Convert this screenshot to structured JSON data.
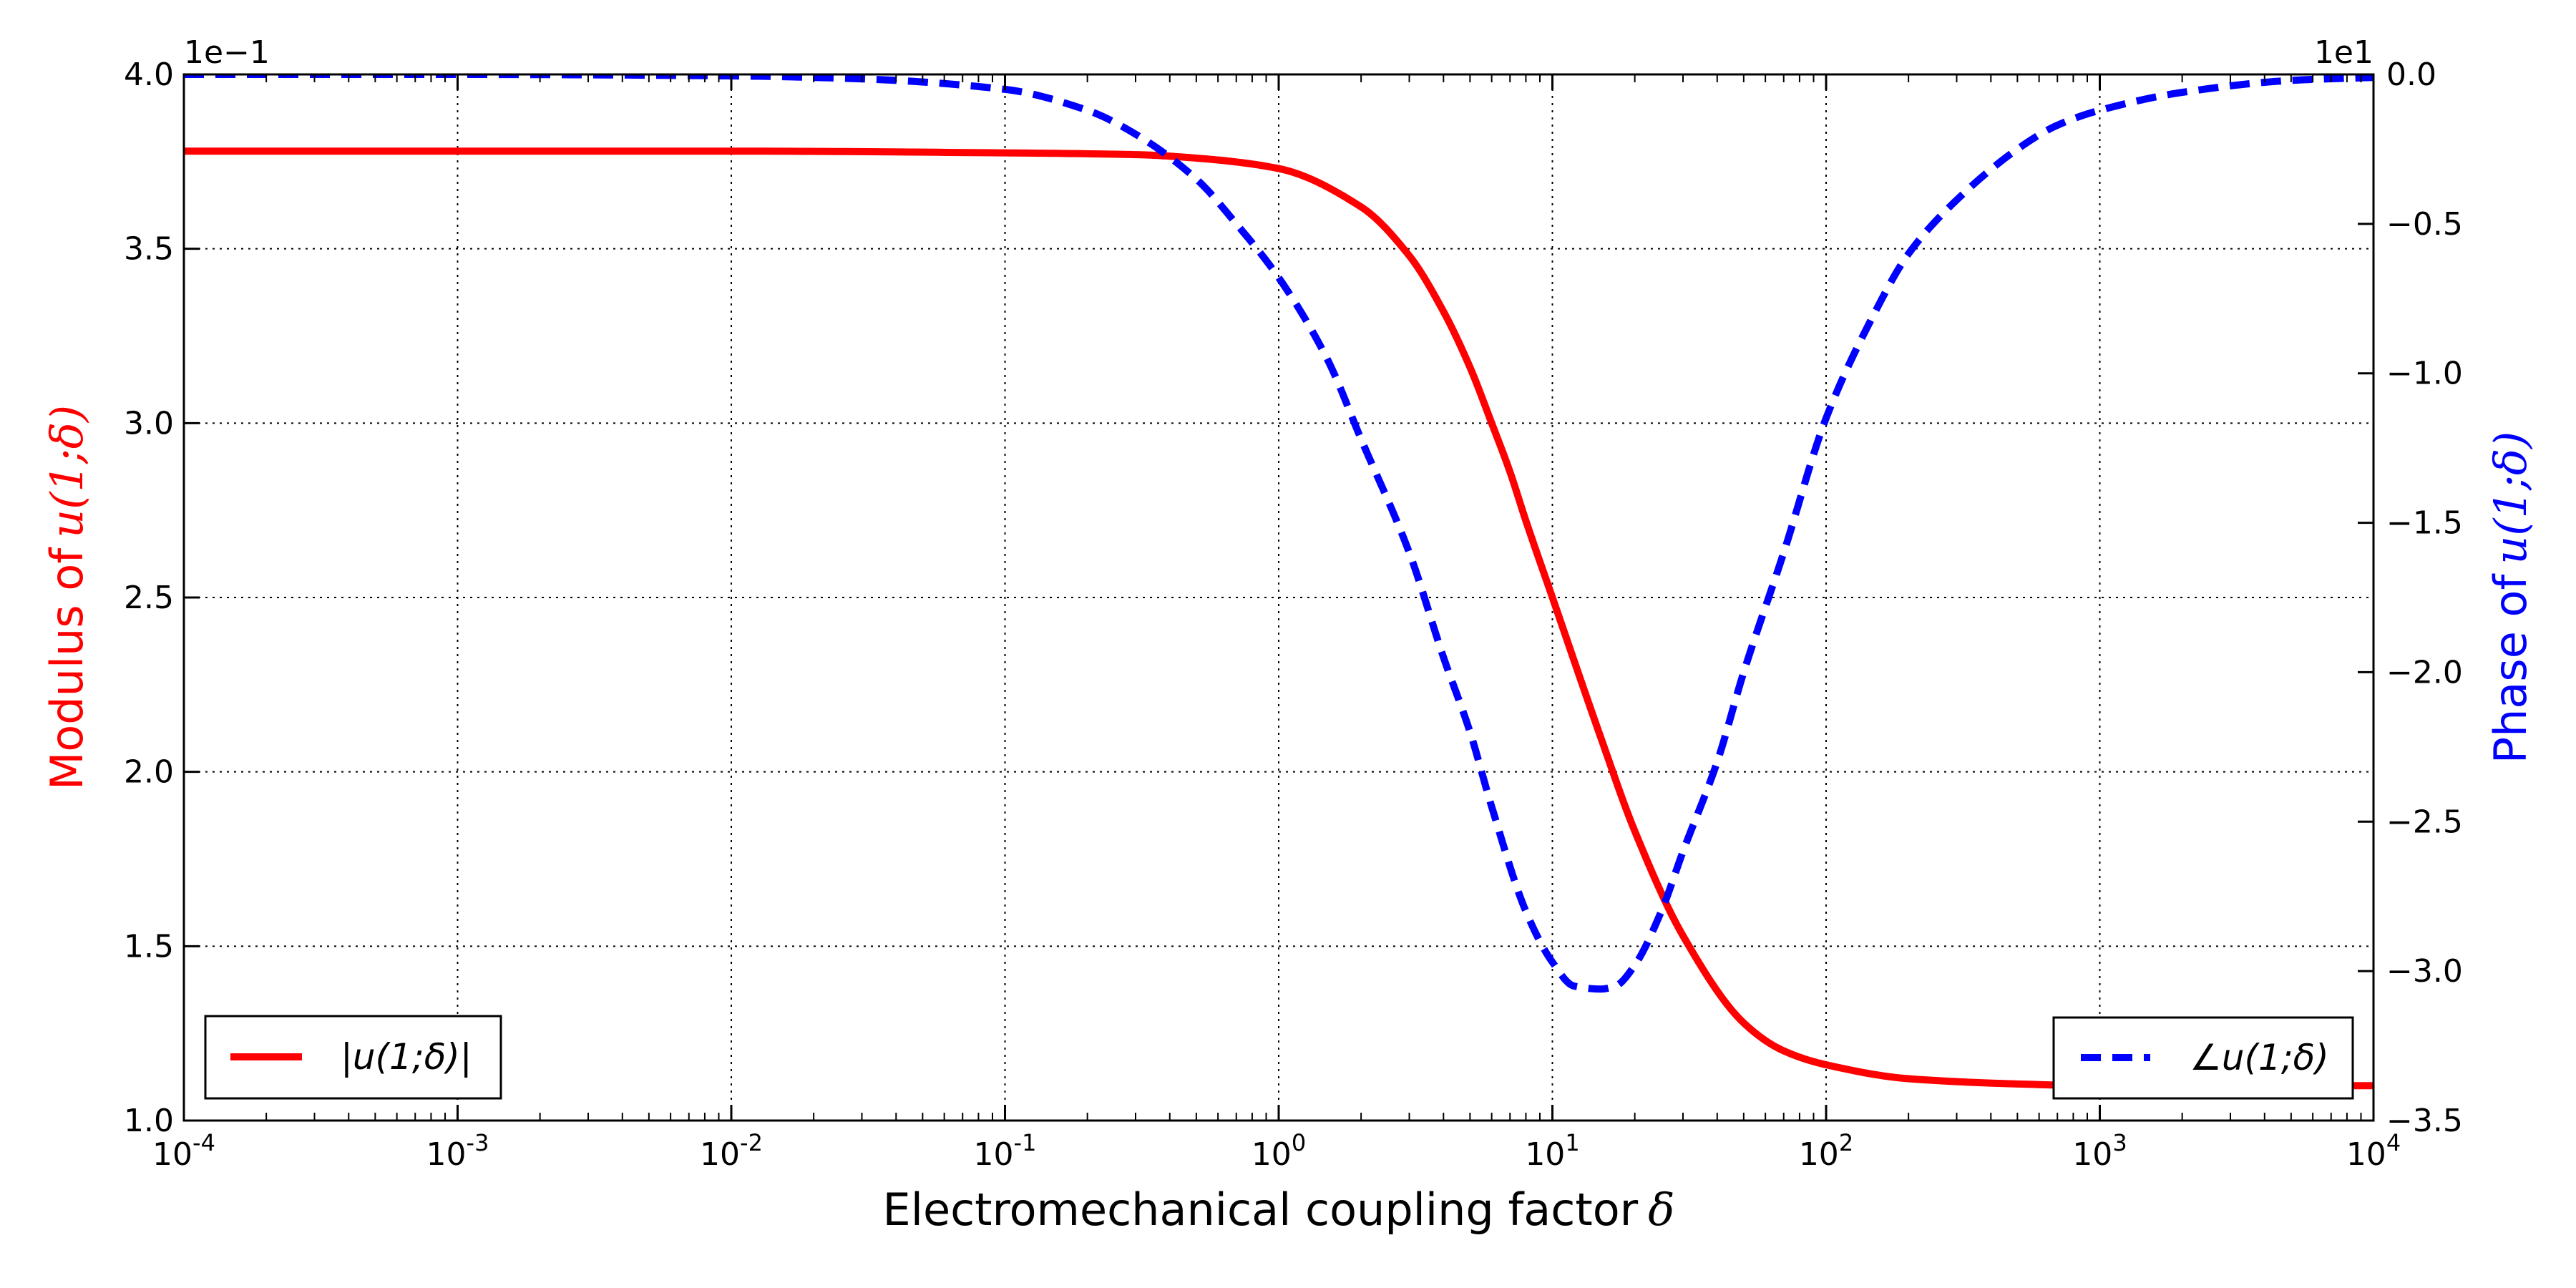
{
  "chart_data": {
    "type": "line",
    "title": "",
    "xlabel": "Electromechanical coupling factor",
    "xlabel_symbol": "δ",
    "xscale": "log",
    "xlim": [
      0.0001,
      10000
    ],
    "x_ticks": [
      "10-4",
      "10-3",
      "10-2",
      "10-1",
      "100",
      "101",
      "102",
      "103",
      "104"
    ],
    "grid": true,
    "left_axis": {
      "label": "Modulus of",
      "label_math": "u(1;δ)",
      "color": "#ff0000",
      "offset_text": "1e−1",
      "ylim": [
        1.0,
        4.0
      ],
      "ticks": [
        "1.0",
        "1.5",
        "2.0",
        "2.5",
        "3.0",
        "3.5",
        "4.0"
      ]
    },
    "right_axis": {
      "label": "Phase of",
      "label_math": "u(1;δ)",
      "color": "#0000ff",
      "offset_text": "1e1",
      "ylim": [
        -3.5,
        0.0
      ],
      "ticks": [
        "−3.5",
        "−3.0",
        "−2.5",
        "−2.0",
        "−1.5",
        "−1.0",
        "−0.5",
        "0.0"
      ]
    },
    "series": [
      {
        "name": "|u(1;δ)|",
        "axis": "left",
        "color": "#ff0000",
        "style": "solid",
        "legend_location": "lower-left",
        "x": [
          0.0001,
          0.001,
          0.01,
          0.1,
          0.3,
          0.5,
          1,
          2,
          3,
          4,
          5,
          6,
          7,
          8,
          10,
          15,
          20,
          30,
          50,
          70,
          100,
          200,
          500,
          1000,
          10000
        ],
        "y": [
          3.78,
          3.78,
          3.78,
          3.775,
          3.77,
          3.76,
          3.73,
          3.62,
          3.48,
          3.32,
          3.16,
          3.0,
          2.86,
          2.72,
          2.5,
          2.1,
          1.83,
          1.53,
          1.28,
          1.2,
          1.16,
          1.12,
          1.105,
          1.1,
          1.1
        ]
      },
      {
        "name": "∠u(1;δ)",
        "axis": "right",
        "color": "#0000ff",
        "style": "dashed",
        "legend_location": "lower-right",
        "x": [
          0.0001,
          0.001,
          0.01,
          0.03,
          0.1,
          0.2,
          0.3,
          0.5,
          0.7,
          1,
          1.5,
          2,
          3,
          4,
          5,
          6,
          8,
          10,
          12,
          15,
          17,
          20,
          25,
          30,
          40,
          50,
          70,
          100,
          150,
          200,
          300,
          500,
          700,
          1000,
          2000,
          5000,
          10000
        ],
        "y": [
          0.0,
          0.0,
          -0.005,
          -0.015,
          -0.05,
          -0.12,
          -0.2,
          -0.35,
          -0.5,
          -0.68,
          -0.95,
          -1.22,
          -1.6,
          -1.95,
          -2.2,
          -2.45,
          -2.8,
          -2.97,
          -3.05,
          -3.06,
          -3.05,
          -2.98,
          -2.8,
          -2.6,
          -2.3,
          -2.0,
          -1.6,
          -1.15,
          -0.8,
          -0.6,
          -0.42,
          -0.25,
          -0.17,
          -0.12,
          -0.06,
          -0.02,
          -0.01
        ]
      }
    ]
  }
}
